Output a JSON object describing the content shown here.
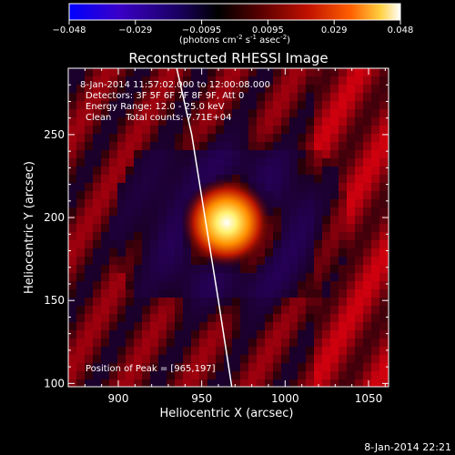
{
  "colorbar": {
    "ticks": [
      "−0.048",
      "−0.029",
      "−0.0095",
      "0.0095",
      "0.029",
      "0.048"
    ],
    "unit_label": "(photons cm",
    "unit_exp1": "-2",
    "unit_mid1": " s",
    "unit_exp2": "-1",
    "unit_mid2": " asec",
    "unit_exp3": "-2",
    "unit_end": ")",
    "colors": [
      "#0000ff",
      "#3a00c8",
      "#1a0060",
      "#000000",
      "#5a0000",
      "#c01000",
      "#ff6000",
      "#ffd040",
      "#ffffff"
    ]
  },
  "chart_data": {
    "type": "heatmap",
    "title": "Reconstructed RHESSI Image",
    "xlabel": "Heliocentric X (arcsec)",
    "ylabel": "Heliocentric Y (arcsec)",
    "xlim": [
      870,
      1062
    ],
    "ylim": [
      98,
      290
    ],
    "x_ticks": [
      900,
      950,
      1000,
      1050
    ],
    "y_ticks": [
      100,
      150,
      200,
      250
    ],
    "peak": {
      "x": 965,
      "y": 197
    },
    "annotations": [
      "8-Jan-2014 11:57:02.000 to 12:00:08.000",
      "Detectors: 3F 5F 6F 7F 8F 9F, Att 0",
      "Energy Range: 12.0 - 25.0 keV",
      "Clean     Total counts: 7.71E+04",
      "Position of Peak = [965,197]"
    ],
    "limb_curve": [
      [
        935,
        290
      ],
      [
        944,
        250
      ],
      [
        952,
        200
      ],
      [
        960,
        150
      ],
      [
        968,
        98
      ]
    ]
  },
  "footer": {
    "timestamp": "8-Jan-2014 22:21"
  }
}
